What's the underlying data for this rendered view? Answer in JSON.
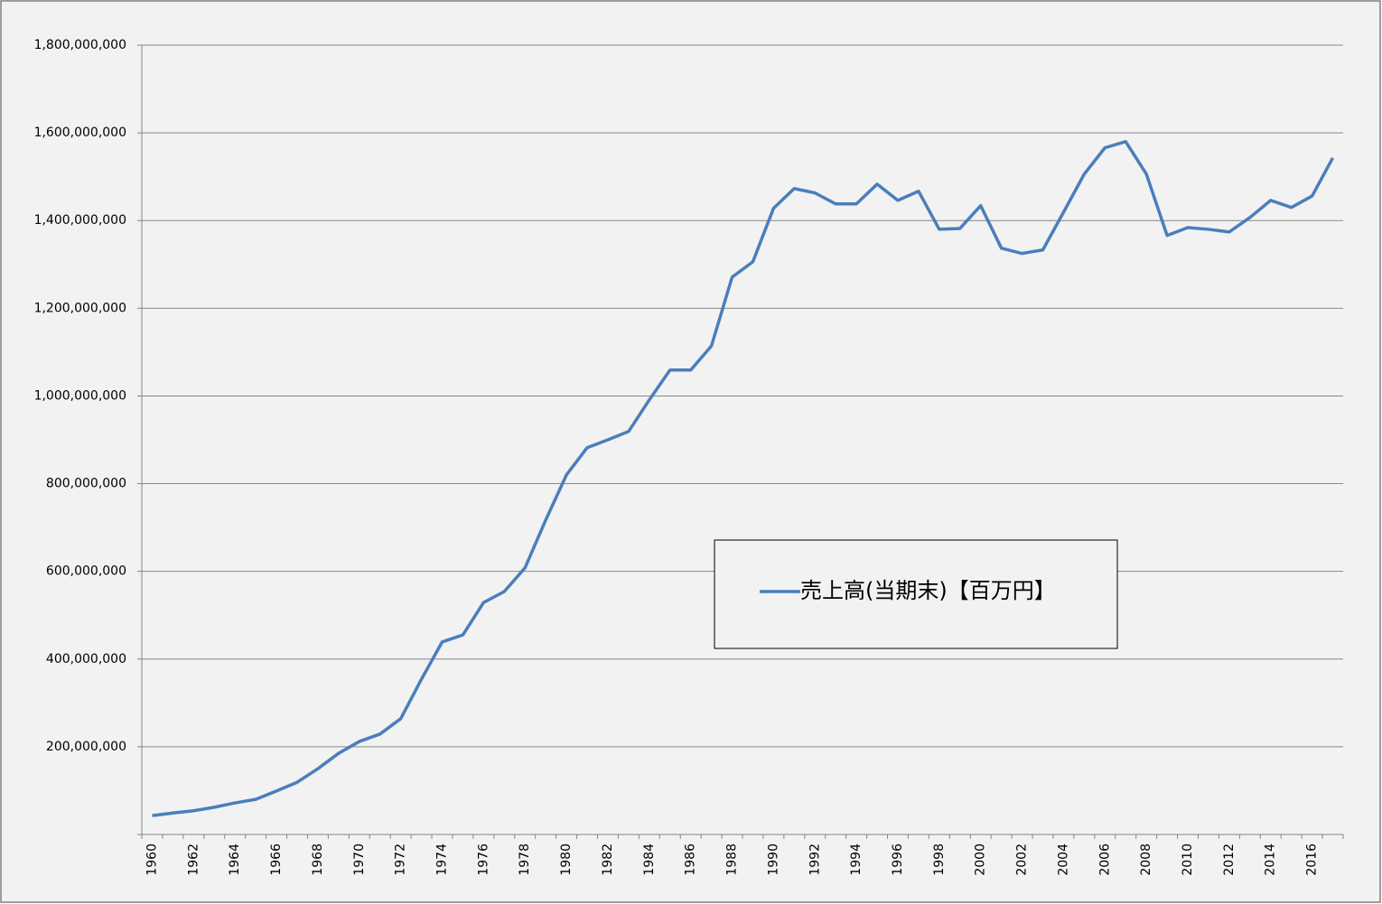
{
  "chart_data": {
    "type": "line",
    "categories": [
      "1960",
      null,
      "1962",
      null,
      "1964",
      null,
      "1966",
      null,
      "1968",
      null,
      "1970",
      null,
      "1972",
      null,
      "1974",
      null,
      "1976",
      null,
      "1978",
      null,
      "1980",
      null,
      "1982",
      null,
      "1984",
      null,
      "1986",
      null,
      "1988",
      null,
      "1990",
      null,
      "1992",
      null,
      "1994",
      null,
      "1996",
      null,
      "1998",
      null,
      "2000",
      null,
      "2002",
      null,
      "2004",
      null,
      "2006",
      null,
      "2008",
      null,
      "2010",
      null,
      "2012",
      null,
      "2014",
      null,
      "2016",
      null
    ],
    "series": [
      {
        "name": "売上高(当期末)【百万円】",
        "color": "#4a7ebb",
        "values": [
          43000000,
          49000000,
          54000000,
          62000000,
          72000000,
          80000000,
          99000000,
          119000000,
          150000000,
          185000000,
          212000000,
          229000000,
          264000000,
          354000000,
          439000000,
          455000000,
          529000000,
          554000000,
          608000000,
          717000000,
          820000000,
          882000000,
          900000000,
          919000000,
          991000000,
          1059000000,
          1059000000,
          1114000000,
          1271000000,
          1306000000,
          1428000000,
          1473000000,
          1463000000,
          1438000000,
          1438000000,
          1483000000,
          1446000000,
          1467000000,
          1380000000,
          1382000000,
          1434000000,
          1337000000,
          1325000000,
          1333000000,
          1419000000,
          1506000000,
          1566000000,
          1580000000,
          1506000000,
          1366000000,
          1384000000,
          1380000000,
          1374000000,
          1407000000,
          1446000000,
          1430000000,
          1456000000,
          1543000000
        ]
      }
    ],
    "ylim": [
      0,
      1800000000
    ],
    "yticks": [
      {
        "value": 200000000,
        "label": "200,000,000"
      },
      {
        "value": 400000000,
        "label": "400,000,000"
      },
      {
        "value": 600000000,
        "label": "600,000,000"
      },
      {
        "value": 800000000,
        "label": "800,000,000"
      },
      {
        "value": 1000000000,
        "label": "1,000,000,000"
      },
      {
        "value": 1200000000,
        "label": "1,200,000,000"
      },
      {
        "value": 1400000000,
        "label": "1,400,000,000"
      },
      {
        "value": 1600000000,
        "label": "1,600,000,000"
      },
      {
        "value": 1800000000,
        "label": "1,800,000,000"
      }
    ],
    "grid": true,
    "legend": "center"
  }
}
